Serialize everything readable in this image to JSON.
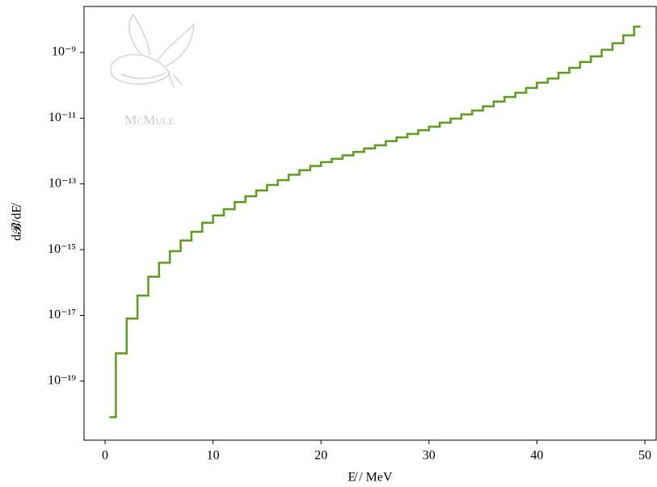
{
  "chart_data": {
    "type": "histogram",
    "x_label": "E̸ / MeV",
    "y_label": "d𝓑/dE̸",
    "watermark": "McMule",
    "color": "#5c9e1c",
    "log_y": true,
    "bins": [
      0.5,
      1,
      2,
      3,
      4,
      5,
      6,
      7,
      8,
      9,
      10,
      11,
      12,
      13,
      14,
      15,
      16,
      17,
      18,
      19,
      20,
      21,
      22,
      23,
      24,
      25,
      26,
      27,
      28,
      29,
      30,
      31,
      32,
      33,
      34,
      35,
      36,
      37,
      38,
      39,
      40,
      41,
      42,
      43,
      44,
      45,
      46,
      47,
      48,
      49,
      49.5
    ],
    "values": [
      8e-21,
      7e-19,
      8e-18,
      4e-17,
      1.5e-16,
      4e-16,
      9e-16,
      1.9e-15,
      3.5e-15,
      6.6e-15,
      1.1e-14,
      1.7e-14,
      2.8e-14,
      4.2e-14,
      6.3e-14,
      9.3e-14,
      1.3e-13,
      1.9e-13,
      2.6e-13,
      3.5e-13,
      4.6e-13,
      5.8e-13,
      7.4e-13,
      9.4e-13,
      1.2e-12,
      1.5e-12,
      2e-12,
      2.6e-12,
      3.3e-12,
      4.3e-12,
      5.5e-12,
      7.3e-12,
      9.7e-12,
      1.3e-11,
      1.7e-11,
      2.3e-11,
      3.2e-11,
      4.4e-11,
      5.9e-11,
      8.3e-11,
      1.2e-10,
      1.6e-10,
      2.4e-10,
      3.4e-10,
      5.1e-10,
      7.6e-10,
      1.2e-09,
      1.9e-09,
      3.3e-09,
      6.1e-09
    ],
    "xlim": [
      -1.95,
      51.05
    ],
    "xticks": [
      0,
      10,
      20,
      30,
      40,
      50
    ],
    "ylim": [
      1.6e-21,
      2.5e-08
    ],
    "yticks": [
      {
        "value": 1e-09,
        "label": "10⁻⁹"
      },
      {
        "value": 1e-11,
        "label": "10⁻¹¹"
      },
      {
        "value": 1e-13,
        "label": "10⁻¹³"
      },
      {
        "value": 1e-15,
        "label": "10⁻¹⁵"
      },
      {
        "value": 1e-17,
        "label": "10⁻¹⁷"
      },
      {
        "value": 1e-19,
        "label": "10⁻¹⁹"
      }
    ]
  }
}
